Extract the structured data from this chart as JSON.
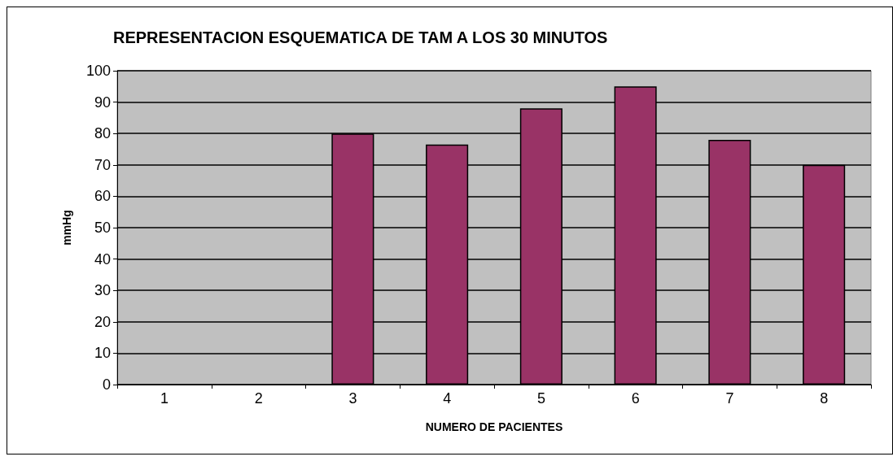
{
  "chart_data": {
    "type": "bar",
    "title": "REPRESENTACION ESQUEMATICA DE TAM A LOS 30 MINUTOS",
    "xlabel": "NUMERO DE PACIENTES",
    "ylabel": "mmHg",
    "categories": [
      "1",
      "2",
      "3",
      "4",
      "5",
      "6",
      "7",
      "8"
    ],
    "values": [
      null,
      null,
      80,
      76.5,
      88,
      95,
      78,
      70
    ],
    "color": "#993366",
    "ylim": [
      0,
      100
    ],
    "yticks": [
      0,
      10,
      20,
      30,
      40,
      50,
      60,
      70,
      80,
      90,
      100
    ],
    "grid": "y"
  }
}
